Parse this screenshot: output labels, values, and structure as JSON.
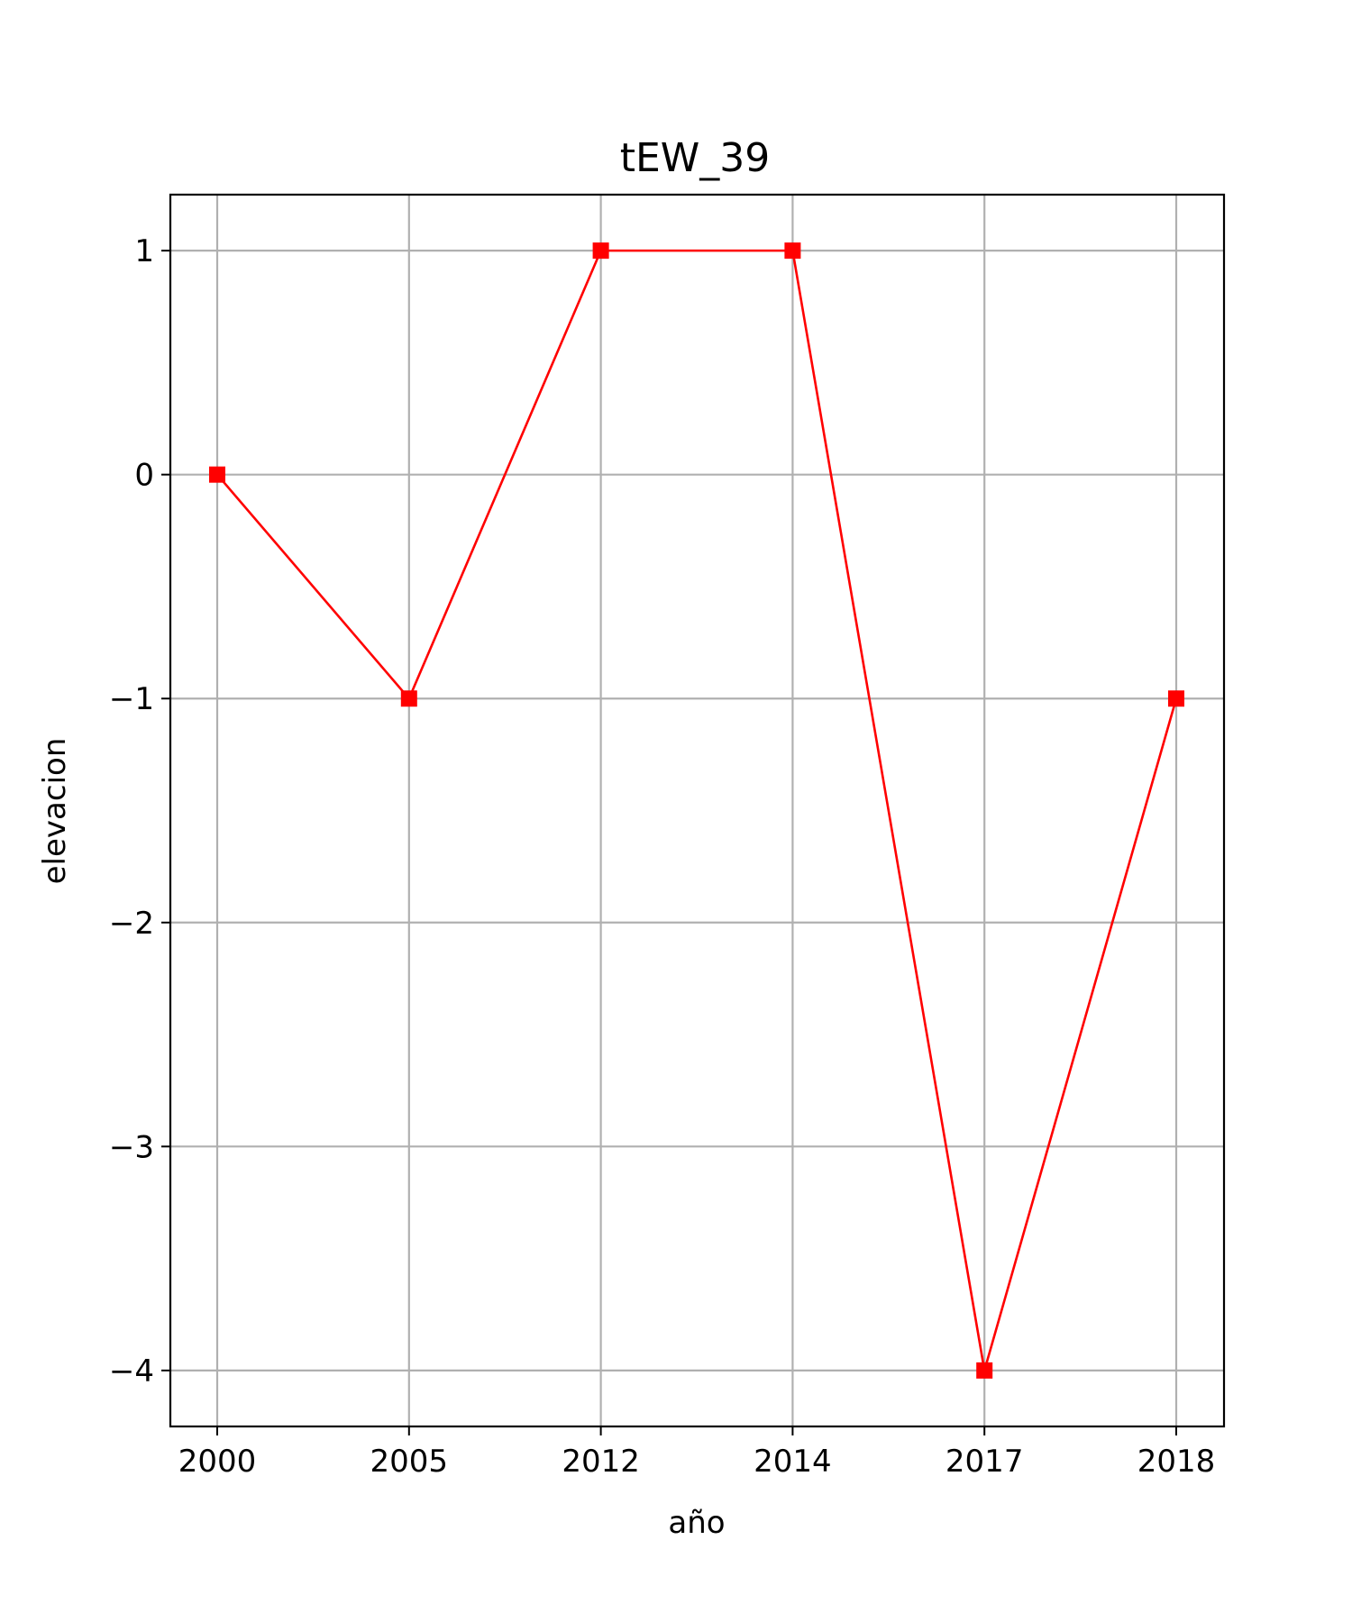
{
  "chart_data": {
    "type": "line",
    "title": "tEW_39",
    "xlabel": "año",
    "ylabel": "elevacion",
    "categories": [
      "2000",
      "2005",
      "2012",
      "2014",
      "2017",
      "2018"
    ],
    "series": [
      {
        "values": [
          0,
          -1,
          1,
          1,
          -4,
          -1
        ],
        "color": "#ff0000",
        "marker": "square"
      }
    ],
    "ylim": [
      -4.25,
      1.25
    ],
    "yticks": [
      1,
      0,
      -1,
      -2,
      -3,
      -4
    ],
    "ytick_labels": [
      "1",
      "0",
      "−1",
      "−2",
      "−3",
      "−4"
    ],
    "grid": true
  }
}
